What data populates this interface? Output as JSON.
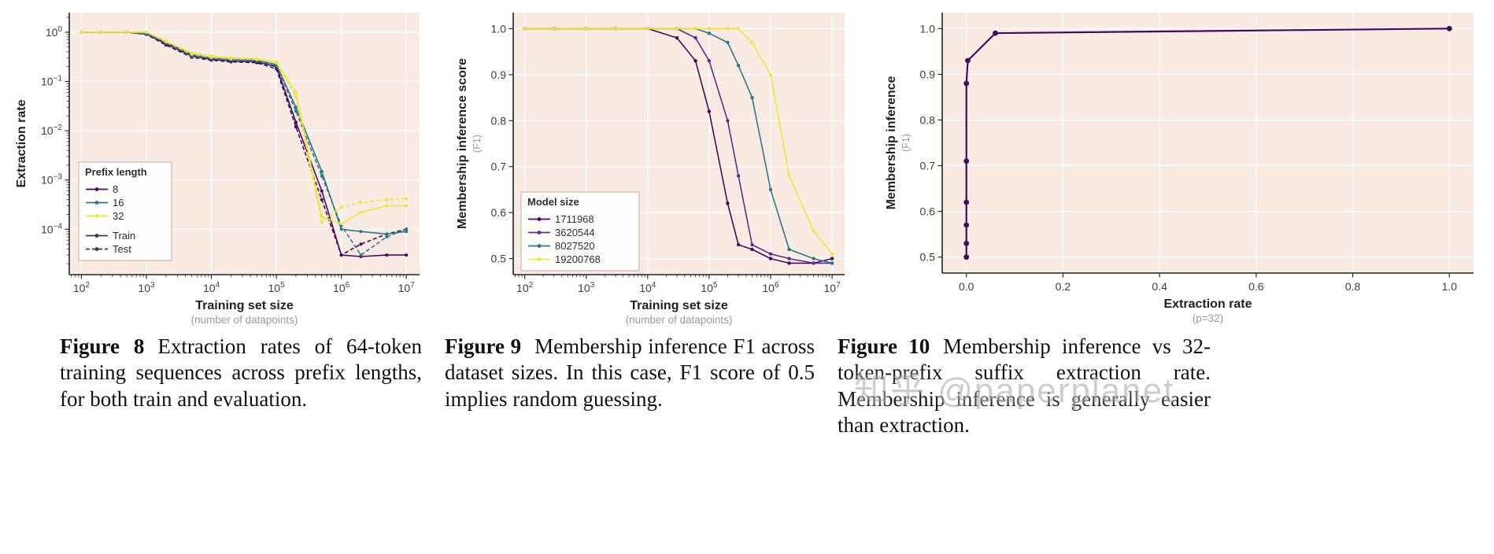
{
  "page": {
    "background": "#ffffff",
    "watermark": "知乎 @paperplanet"
  },
  "captions": [
    {
      "label": "Figure 8",
      "text": "Extraction rates of 64-token training sequences across prefix lengths, for both train and evaluation."
    },
    {
      "label": "Figure 9",
      "text": "Membership inference F1 across dataset sizes. In this case, F1 score of 0.5 implies random guessing."
    },
    {
      "label": "Figure 10",
      "text": "Membership inference vs 32-token-prefix suffix extraction rate. Membership inference is generally easier than extraction."
    }
  ],
  "chart_data": [
    {
      "type": "line",
      "figure": "Figure 8",
      "title": "",
      "xlabel": "Training set size",
      "xlabel_sub": "(number of datapoints)",
      "ylabel": "Extraction rate",
      "ylabel_sub": "",
      "x_scale": "log",
      "y_scale": "log",
      "xlim": [
        65,
        16000000
      ],
      "ylim": [
        1.2e-05,
        2.5
      ],
      "x_ticks": [
        100,
        1000,
        10000,
        100000,
        1000000,
        10000000
      ],
      "y_ticks": [
        1,
        0.1,
        0.01,
        0.001,
        0.0001
      ],
      "grid": true,
      "plot_bg": "#f9ebe2",
      "grid_color": "#ffffff",
      "line_width": 1.6,
      "marker_r": 2,
      "legend": {
        "title": "Prefix length",
        "position": "lower-left-inside",
        "pos": [
          12,
          190
        ],
        "width": 118,
        "entries": [
          {
            "label": "8",
            "color": "#46085c",
            "dash": "solid"
          },
          {
            "label": "16",
            "color": "#2a788e",
            "dash": "solid"
          },
          {
            "label": "32",
            "color": "#f2e33b",
            "dash": "solid"
          },
          {
            "label": "Train",
            "color": "#3a3a3a",
            "dash": "solid",
            "gap": true
          },
          {
            "label": "Test",
            "color": "#3a3a3a",
            "dash": "dashed"
          }
        ]
      },
      "x": [
        100,
        200,
        500,
        1000,
        2000,
        5000,
        10000,
        20000,
        50000,
        100000,
        200000,
        500000,
        1000000,
        2000000,
        5000000,
        10000000
      ],
      "series": [
        {
          "name": "prefix-8-train",
          "color": "#46085c",
          "dash": "solid",
          "y": [
            1,
            1,
            1,
            0.92,
            0.58,
            0.33,
            0.28,
            0.26,
            0.25,
            0.2,
            0.015,
            0.0006,
            3e-05,
            2.8e-05,
            3e-05,
            3e-05
          ]
        },
        {
          "name": "prefix-8-test",
          "color": "#46085c",
          "dash": "dashed",
          "y": [
            1,
            1,
            1,
            0.9,
            0.55,
            0.31,
            0.27,
            0.25,
            0.24,
            0.18,
            0.012,
            0.0004,
            3e-05,
            5e-05,
            8e-05,
            0.0001
          ]
        },
        {
          "name": "prefix-16-train",
          "color": "#2a788e",
          "dash": "solid",
          "y": [
            1,
            1,
            1,
            0.94,
            0.62,
            0.35,
            0.3,
            0.28,
            0.27,
            0.22,
            0.03,
            0.0015,
            0.0001,
            9e-05,
            8e-05,
            9e-05
          ]
        },
        {
          "name": "prefix-16-test",
          "color": "#2a788e",
          "dash": "dashed",
          "y": [
            1,
            1,
            1,
            0.93,
            0.6,
            0.33,
            0.29,
            0.27,
            0.26,
            0.21,
            0.025,
            0.0012,
            0.00012,
            3e-05,
            7e-05,
            0.0001
          ]
        },
        {
          "name": "prefix-32-train",
          "color": "#f2e33b",
          "dash": "solid",
          "y": [
            1,
            1,
            1,
            1,
            0.66,
            0.38,
            0.33,
            0.3,
            0.29,
            0.25,
            0.06,
            0.00018,
            0.00013,
            0.00022,
            0.0003,
            0.0003
          ]
        },
        {
          "name": "prefix-32-test",
          "color": "#f2e33b",
          "dash": "dashed",
          "y": [
            1,
            1,
            1,
            1,
            0.64,
            0.36,
            0.31,
            0.29,
            0.28,
            0.24,
            0.05,
            0.00014,
            0.00028,
            0.00035,
            0.0004,
            0.00042
          ]
        }
      ]
    },
    {
      "type": "line",
      "figure": "Figure 9",
      "title": "",
      "xlabel": "Training set size",
      "xlabel_sub": "(number of datapoints)",
      "ylabel": "Membership inference score",
      "ylabel_sub": "(F1)",
      "x_scale": "log",
      "y_scale": "linear",
      "xlim": [
        65,
        16000000
      ],
      "ylim": [
        0.465,
        1.035
      ],
      "x_ticks": [
        100,
        1000,
        10000,
        100000,
        1000000,
        10000000
      ],
      "y_ticks": [
        0.5,
        0.6,
        0.7,
        0.8,
        0.9,
        1.0
      ],
      "grid": true,
      "plot_bg": "#f9ebe2",
      "grid_color": "#ffffff",
      "line_width": 1.6,
      "marker_r": 2.2,
      "legend": {
        "title": "Model size",
        "position": "lower-left-inside",
        "pos": [
          10,
          228
        ],
        "width": 150,
        "entries": [
          {
            "label": "1711968",
            "color": "#46085c",
            "dash": "solid"
          },
          {
            "label": "3620544",
            "color": "#5c2d87",
            "dash": "solid"
          },
          {
            "label": "8027520",
            "color": "#2a788e",
            "dash": "solid"
          },
          {
            "label": "19200768",
            "color": "#f2e33b",
            "dash": "solid"
          }
        ]
      },
      "x": [
        100,
        300,
        1000,
        3000,
        10000,
        30000,
        60000,
        100000,
        200000,
        300000,
        500000,
        1000000,
        2000000,
        5000000,
        10000000
      ],
      "series": [
        {
          "name": "model-1711968",
          "color": "#46085c",
          "dash": "solid",
          "y": [
            1,
            1,
            1,
            1,
            1,
            0.98,
            0.93,
            0.82,
            0.62,
            0.53,
            0.52,
            0.5,
            0.49,
            0.49,
            0.5
          ]
        },
        {
          "name": "model-3620544",
          "color": "#5c2d87",
          "dash": "solid",
          "y": [
            1,
            1,
            1,
            1,
            1,
            1,
            0.98,
            0.93,
            0.8,
            0.68,
            0.53,
            0.51,
            0.5,
            0.49,
            0.49
          ]
        },
        {
          "name": "model-8027520",
          "color": "#2a788e",
          "dash": "solid",
          "y": [
            1,
            1,
            1,
            1,
            1,
            1,
            1,
            0.99,
            0.97,
            0.92,
            0.85,
            0.65,
            0.52,
            0.5,
            0.49
          ]
        },
        {
          "name": "model-19200768",
          "color": "#f2e33b",
          "dash": "solid",
          "y": [
            1,
            1,
            1,
            1,
            1,
            1,
            1,
            1,
            1,
            1,
            0.97,
            0.9,
            0.68,
            0.56,
            0.51
          ]
        }
      ]
    },
    {
      "type": "line",
      "figure": "Figure 10",
      "title": "",
      "xlabel": "Extraction rate",
      "xlabel_sub": "(p=32)",
      "ylabel": "Membership inference",
      "ylabel_sub": "(F1)",
      "x_scale": "linear",
      "y_scale": "linear",
      "xlim": [
        -0.05,
        1.05
      ],
      "ylim": [
        0.465,
        1.035
      ],
      "x_ticks": [
        0.0,
        0.2,
        0.4,
        0.6,
        0.8,
        1.0
      ],
      "y_ticks": [
        0.5,
        0.6,
        0.7,
        0.8,
        0.9,
        1.0
      ],
      "grid": true,
      "plot_bg": "#f9ebe2",
      "grid_color": "#ffffff",
      "line_width": 2.2,
      "marker_r": 3.4,
      "legend": null,
      "series": [
        {
          "name": "mi-vs-extraction",
          "color": "#46085c",
          "dash": "solid",
          "x": [
            0,
            0,
            0,
            0,
            0,
            0,
            0.003,
            0.06,
            1.0
          ],
          "y": [
            0.5,
            0.53,
            0.57,
            0.62,
            0.71,
            0.88,
            0.93,
            0.99,
            1.0
          ]
        }
      ]
    }
  ]
}
